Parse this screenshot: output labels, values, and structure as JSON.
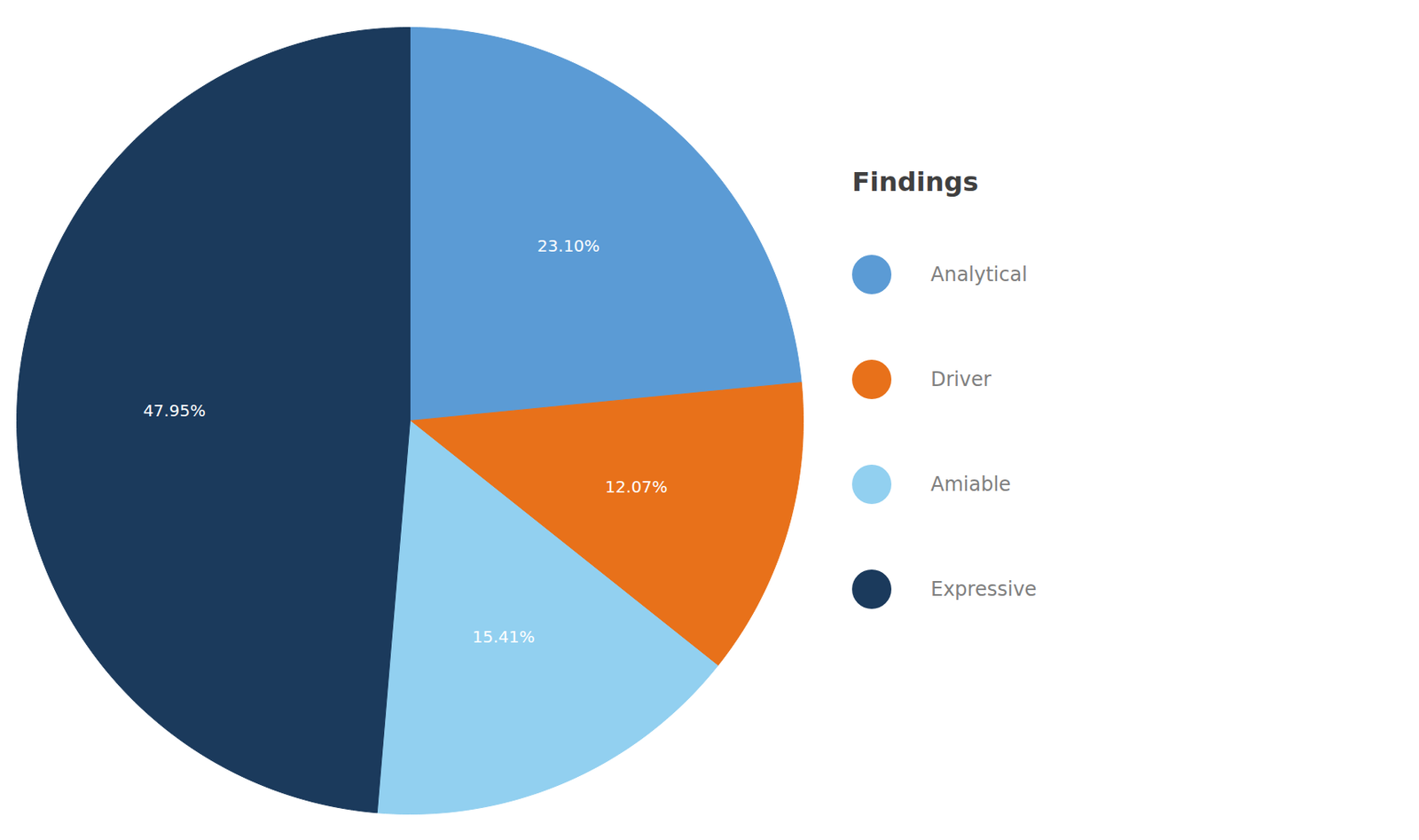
{
  "chart_data": {
    "type": "pie",
    "title": "Findings",
    "categories": [
      "Analytical",
      "Driver",
      "Amiable",
      "Expressive"
    ],
    "values": [
      23.1,
      12.07,
      15.41,
      47.95
    ],
    "value_labels": [
      "23.10%",
      "12.07%",
      "15.41%",
      "47.95%"
    ],
    "colors": [
      "#5b9bd5",
      "#e8711a",
      "#92d0f0",
      "#1b3a5c"
    ],
    "data_labels": true,
    "legend": "right"
  }
}
